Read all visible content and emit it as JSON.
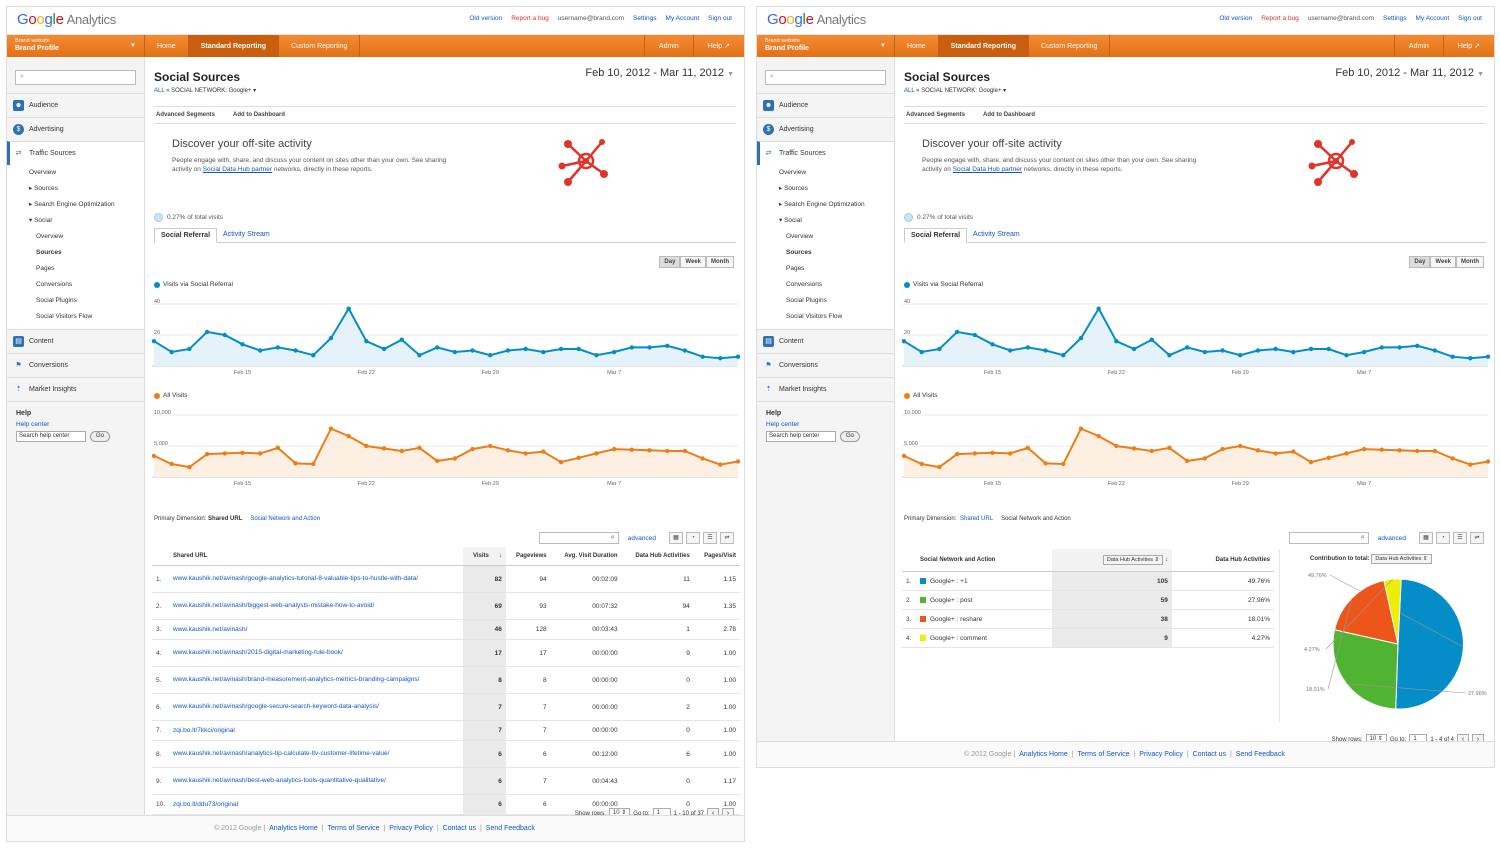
{
  "brand": {
    "google": "Google",
    "analytics": "Analytics"
  },
  "toplinks": {
    "old": "Old version",
    "bug": "Report a bug",
    "user": "username@brand.com",
    "settings": "Settings",
    "account": "My Account",
    "signout": "Sign out"
  },
  "profile": {
    "site": "Brand website",
    "name": "Brand Profile"
  },
  "nav": {
    "home": "Home",
    "standard": "Standard Reporting",
    "custom": "Custom Reporting",
    "admin": "Admin",
    "help": "Help"
  },
  "sidebar": {
    "audience": "Audience",
    "advertising": "Advertising",
    "traffic": "Traffic Sources",
    "traffic_items": [
      "Overview",
      "Sources",
      "Search Engine Optimization",
      "Social"
    ],
    "social_items": [
      "Overview",
      "Sources",
      "Pages",
      "Conversions",
      "Social Plugins",
      "Social Visitors Flow"
    ],
    "content": "Content",
    "conversions": "Conversions",
    "market": "Market Insights",
    "help_title": "Help",
    "help_center": "Help center",
    "help_search": "Search help center",
    "go": "Go"
  },
  "report": {
    "title": "Social Sources",
    "bc_all": "ALL",
    "bc_sep": "»",
    "bc_net": "SOCIAL NETWORK: Google+",
    "date": "Feb 10, 2012 - Mar 11, 2012",
    "segments": "Advanced Segments",
    "dashboard": "Add to Dashboard",
    "discover_title": "Discover your off-site activity",
    "discover_text1": "People engage with, share, and discuss your content on sites other than your own. See sharing activity on ",
    "discover_link": "Social Data Hub partner",
    "discover_text2": " networks, directly in these reports.",
    "pct": "0.27% of total visits",
    "tab1": "Social Referral",
    "tab2": "Activity Stream",
    "day": "Day",
    "week": "Week",
    "month": "Month",
    "advanced": "advanced",
    "pdim_label": "Primary Dimension:",
    "dim1": "Shared URL",
    "dim2": "Social Network and Action"
  },
  "chart_data": [
    {
      "type": "line",
      "title": "Visits via Social Referral",
      "color": "#058dc7",
      "ylim": [
        0,
        40
      ],
      "yticks": [
        "40",
        "20"
      ],
      "xticks": [
        "Feb 15",
        "Feb 22",
        "Feb 29",
        "Mar 7"
      ],
      "values": [
        16,
        9,
        11,
        22,
        20,
        14,
        10,
        12,
        10,
        7,
        18,
        37,
        16,
        11,
        17,
        7,
        12,
        9,
        10,
        7,
        10,
        11,
        9,
        11,
        11,
        7,
        9,
        12,
        12,
        13,
        10,
        6,
        5,
        6
      ]
    },
    {
      "type": "area",
      "title": "All Visits",
      "color": "#ed7e17",
      "ylim": [
        0,
        10000
      ],
      "yticks": [
        "10,000",
        "5,000"
      ],
      "xticks": [
        "Feb 15",
        "Feb 22",
        "Feb 29",
        "Mar 7"
      ],
      "values": [
        3400,
        2100,
        1600,
        3700,
        3800,
        3900,
        3800,
        4700,
        2200,
        2100,
        7800,
        6600,
        5000,
        4600,
        4200,
        4700,
        2600,
        3000,
        4500,
        5000,
        4300,
        3800,
        4100,
        2400,
        3100,
        3800,
        4500,
        4400,
        4300,
        4200,
        4200,
        3000,
        2000,
        2500
      ]
    }
  ],
  "left_table": {
    "headers": [
      "Shared URL",
      "Visits",
      "Pageviews",
      "Avg. Visit Duration",
      "Data Hub Activities",
      "Pages/Visit"
    ],
    "rows": [
      [
        "1.",
        "www.kaushik.net/avinash/google-analytics-tutorial-8-valuable-tips-to-hustle-with-data/",
        "82",
        "94",
        "00:02:09",
        "11",
        "1.15"
      ],
      [
        "2.",
        "www.kaushik.net/avinash/biggest-web-analysts-mistake-how-to-avoid/",
        "69",
        "93",
        "00:07:32",
        "94",
        "1.35"
      ],
      [
        "3.",
        "www.kaushik.net/avinash/",
        "46",
        "128",
        "00:03:43",
        "1",
        "2.78"
      ],
      [
        "4.",
        "www.kaushik.net/avinash/2015-digital-marketing-rule-book/",
        "17",
        "17",
        "00:00:00",
        "9",
        "1.00"
      ],
      [
        "5.",
        "www.kaushik.net/avinash/brand-measurement-analytics-metrics-branding-campaigns/",
        "8",
        "8",
        "00:00:00",
        "0",
        "1.00"
      ],
      [
        "6.",
        "www.kaushik.net/avinash/google-secure-search-keyword-data-analysis/",
        "7",
        "7",
        "00:00:00",
        "2",
        "1.00"
      ],
      [
        "7.",
        "zqi.bo.lt/7kkci/original",
        "7",
        "7",
        "00:00:00",
        "0",
        "1.00"
      ],
      [
        "8.",
        "www.kaushik.net/avinash/analytics-tip-calculate-ltv-customer-lifetime-value/",
        "6",
        "6",
        "00:12:00",
        "6",
        "1.00"
      ],
      [
        "9.",
        "www.kaushik.net/avinash/best-web-analytics-tools-quantitative-qualitative/",
        "6",
        "7",
        "00:04:43",
        "0",
        "1.17"
      ],
      [
        "10.",
        "zqi.bo.lt/ddu73/original",
        "6",
        "6",
        "00:00:00",
        "0",
        "1.00"
      ]
    ],
    "show_rows": "Show rows:",
    "rows_val": "10",
    "goto": "Go to:",
    "goto_val": "1",
    "range": "1 - 10 of 37"
  },
  "right_table": {
    "headers": [
      "Social Network and Action",
      "Data Hub Activities",
      "Data Hub Activities",
      "Contribution to total:"
    ],
    "select": "Data Hub Activities",
    "rows": [
      [
        "1.",
        "Google+ : +1",
        "105",
        "49.76%",
        "#058dc7"
      ],
      [
        "2.",
        "Google+ : post",
        "59",
        "27.96%",
        "#50b432"
      ],
      [
        "3.",
        "Google+ : reshare",
        "38",
        "18.01%",
        "#ed561b"
      ],
      [
        "4.",
        "Google+ : comment",
        "9",
        "4.27%",
        "#edef00"
      ]
    ],
    "pie_labels": [
      "49.76%",
      "27.96%",
      "18.01%",
      "4.27%"
    ],
    "show_rows": "Show rows:",
    "rows_val": "10",
    "goto": "Go to:",
    "goto_val": "1",
    "range": "1 - 4 of 4"
  },
  "footer": {
    "copy": "© 2012 Google",
    "home": "Analytics Home",
    "terms": "Terms of Service",
    "privacy": "Privacy Policy",
    "contact": "Contact us",
    "feedback": "Send Feedback"
  }
}
